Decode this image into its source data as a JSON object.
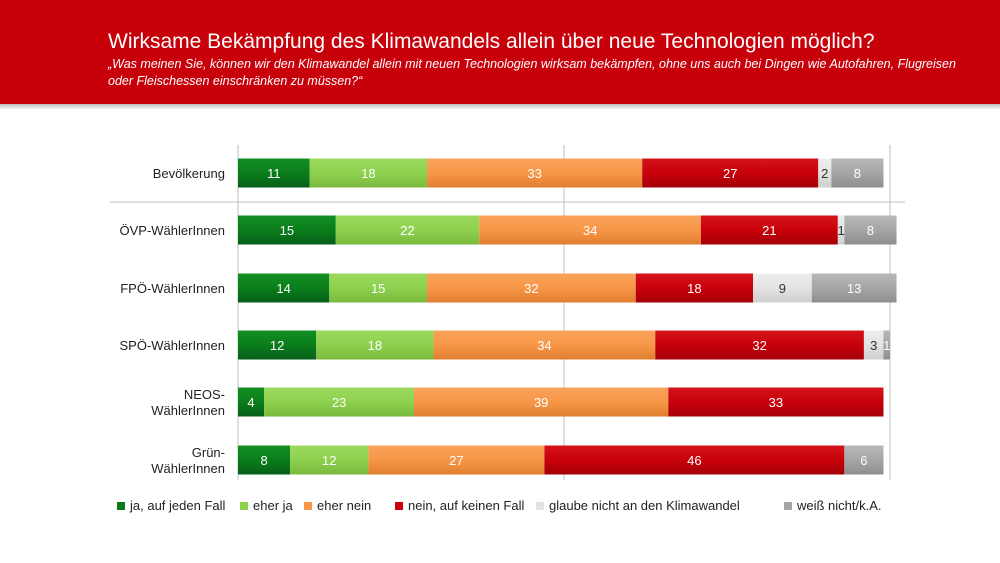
{
  "header": {
    "title": "Wirksame Bekämpfung des Klimawandels allein über neue Technologien möglich?",
    "subtitle": "„Was meinen Sie, können wir den Klimawandel allein mit neuen Technologien wirksam bekämpfen, ohne uns auch bei Dingen wie Autofahren, Flugreisen oder Fleischessen einschränken zu müssen?“"
  },
  "colors": {
    "header_bg": "#c8000a",
    "series": [
      "#0a7d1a",
      "#8ed14f",
      "#f79646",
      "#c8000a",
      "#e3e3e3",
      "#a6a6a6"
    ]
  },
  "chart_data": {
    "type": "bar",
    "orientation": "horizontal",
    "stacked": true,
    "unit": "percent",
    "xlim": [
      0,
      100
    ],
    "grid": true,
    "legend_position": "bottom",
    "categories": [
      [
        "Bevölkerung"
      ],
      [
        "ÖVP-WählerInnen"
      ],
      [
        "FPÖ-WählerInnen"
      ],
      [
        "SPÖ-WählerInnen"
      ],
      [
        "NEOS-",
        "WählerInnen"
      ],
      [
        "Grün-",
        "WählerInnen"
      ]
    ],
    "series": [
      {
        "name": "ja, auf jeden Fall",
        "values": [
          11,
          15,
          14,
          12,
          4,
          8
        ]
      },
      {
        "name": "eher ja",
        "values": [
          18,
          22,
          15,
          18,
          23,
          12
        ]
      },
      {
        "name": "eher nein",
        "values": [
          33,
          34,
          32,
          34,
          39,
          27
        ]
      },
      {
        "name": "nein, auf keinen Fall",
        "values": [
          27,
          21,
          18,
          32,
          33,
          46
        ]
      },
      {
        "name": "glaube nicht an den Klimawandel",
        "values": [
          2,
          1,
          9,
          3,
          0,
          0
        ]
      },
      {
        "name": "weiß nicht/k.A.",
        "values": [
          8,
          8,
          13,
          1,
          0,
          6
        ]
      }
    ]
  }
}
